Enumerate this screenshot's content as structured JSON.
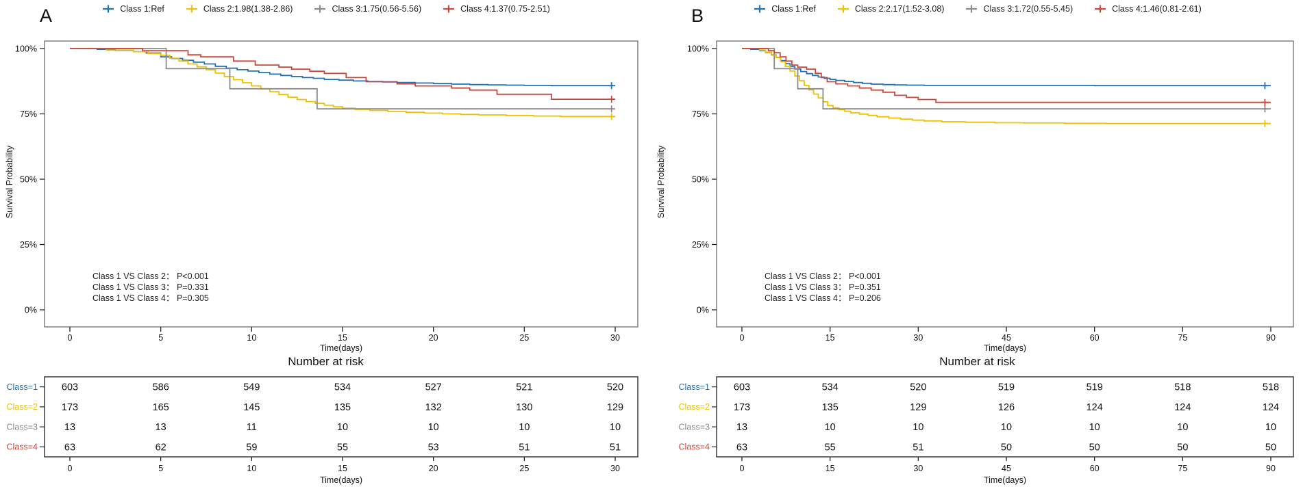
{
  "chart_data": [
    {
      "panel_label": "A",
      "type": "line",
      "subtype": "kaplan-meier-step",
      "xlabel": "Time(days)",
      "ylabel": "Survival Probability",
      "xlim": [
        0,
        31
      ],
      "xticks": [
        0,
        5,
        10,
        15,
        20,
        25,
        30
      ],
      "yticks": [
        100,
        75,
        50,
        25,
        0
      ],
      "ytick_labels": [
        "100%",
        "75%",
        "50%",
        "25%",
        "0%"
      ],
      "grid": "off",
      "legend_position": "top",
      "legend": [
        {
          "label": "Class 1:Ref",
          "color": "#2171B5"
        },
        {
          "label": "Class 2:1.98(1.38-2.86)",
          "color": "#EFC000"
        },
        {
          "label": "Class 3:1.75(0.56-5.56)",
          "color": "#8A8A8A"
        },
        {
          "label": "Class 4:1.37(0.75-2.51)",
          "color": "#CE463A"
        }
      ],
      "annotations": [
        "Class 1 VS Class 2： P<0.001",
        "Class 1 VS Class 3： P=0.331",
        "Class 1 VS Class 4： P=0.305"
      ],
      "series": [
        {
          "name": "Class 1",
          "color": "#2171B5",
          "censor": [
            29.8,
            85.8
          ],
          "steps": [
            [
              0,
              100
            ],
            [
              1.5,
              99.7
            ],
            [
              2.5,
              99.3
            ],
            [
              3.5,
              98.8
            ],
            [
              4.2,
              98.3
            ],
            [
              5,
              96.8
            ],
            [
              5.6,
              96.2
            ],
            [
              6.2,
              95.5
            ],
            [
              6.8,
              94.8
            ],
            [
              7.4,
              94.1
            ],
            [
              8,
              93.2
            ],
            [
              8.6,
              92.5
            ],
            [
              9.2,
              91.9
            ],
            [
              9.8,
              91.4
            ],
            [
              10.4,
              90.8
            ],
            [
              11,
              90.2
            ],
            [
              11.6,
              89.7
            ],
            [
              12.2,
              89.3
            ],
            [
              12.8,
              88.9
            ],
            [
              13.4,
              88.6
            ],
            [
              14,
              88.2
            ],
            [
              14.8,
              87.9
            ],
            [
              15.6,
              87.6
            ],
            [
              16.4,
              87.4
            ],
            [
              17.2,
              87.2
            ],
            [
              18,
              87.0
            ],
            [
              19,
              86.8
            ],
            [
              20,
              86.6
            ],
            [
              21,
              86.4
            ],
            [
              22,
              86.2
            ],
            [
              23,
              86.1
            ],
            [
              24,
              86.0
            ],
            [
              25,
              85.9
            ],
            [
              26.5,
              85.8
            ],
            [
              30,
              85.8
            ]
          ]
        },
        {
          "name": "Class 2",
          "color": "#EFC000",
          "censor": [
            29.8,
            74.0
          ],
          "steps": [
            [
              0,
              100
            ],
            [
              2,
              99.4
            ],
            [
              3.5,
              98.8
            ],
            [
              4.3,
              98.1
            ],
            [
              5,
              97.4
            ],
            [
              5.5,
              96.3
            ],
            [
              6,
              95.2
            ],
            [
              6.5,
              94.1
            ],
            [
              7,
              93.0
            ],
            [
              7.5,
              91.9
            ],
            [
              8,
              90.6
            ],
            [
              8.5,
              89.3
            ],
            [
              9,
              88.1
            ],
            [
              9.5,
              86.9
            ],
            [
              10,
              85.7
            ],
            [
              10.5,
              84.6
            ],
            [
              11,
              83.5
            ],
            [
              11.5,
              82.4
            ],
            [
              12,
              81.4
            ],
            [
              12.5,
              80.5
            ],
            [
              13,
              79.7
            ],
            [
              13.5,
              79.0
            ],
            [
              14,
              78.3
            ],
            [
              14.5,
              77.7
            ],
            [
              15,
              77.2
            ],
            [
              15.7,
              76.7
            ],
            [
              16.5,
              76.3
            ],
            [
              17.5,
              75.9
            ],
            [
              18.5,
              75.6
            ],
            [
              19.5,
              75.3
            ],
            [
              20.5,
              75.0
            ],
            [
              21.5,
              74.8
            ],
            [
              22.5,
              74.6
            ],
            [
              24,
              74.4
            ],
            [
              25.5,
              74.2
            ],
            [
              27,
              74.0
            ],
            [
              30,
              74.0
            ]
          ]
        },
        {
          "name": "Class 3",
          "color": "#8A8A8A",
          "censor": [
            29.8,
            76.9
          ],
          "steps": [
            [
              0,
              100
            ],
            [
              5.3,
              92.3
            ],
            [
              8.8,
              84.6
            ],
            [
              13.6,
              76.9
            ],
            [
              30,
              76.9
            ]
          ]
        },
        {
          "name": "Class 4",
          "color": "#CE463A",
          "censor": [
            29.8,
            80.6
          ],
          "steps": [
            [
              0,
              100
            ],
            [
              4,
              99.2
            ],
            [
              6.5,
              97.6
            ],
            [
              7.2,
              96.8
            ],
            [
              9,
              95.2
            ],
            [
              10.2,
              93.7
            ],
            [
              11.5,
              92.9
            ],
            [
              12.2,
              92.1
            ],
            [
              13.2,
              91.3
            ],
            [
              14,
              90.5
            ],
            [
              15.2,
              88.9
            ],
            [
              16.3,
              87.3
            ],
            [
              18,
              86.5
            ],
            [
              19,
              85.7
            ],
            [
              21,
              84.9
            ],
            [
              22,
              84.1
            ],
            [
              23.5,
              82.5
            ],
            [
              26.5,
              80.6
            ],
            [
              30,
              80.6
            ]
          ]
        }
      ],
      "risk_table": {
        "title": "Number at risk",
        "xlabel": "Time(days)",
        "times": [
          0,
          5,
          10,
          15,
          20,
          25,
          30
        ],
        "rows": [
          {
            "label": "Class=1",
            "color": "#2171B5",
            "values": [
              "603",
              "586",
              "549",
              "534",
              "527",
              "521",
              "520"
            ]
          },
          {
            "label": "Class=2",
            "color": "#EFC000",
            "values": [
              "173",
              "165",
              "145",
              "135",
              "132",
              "130",
              "129"
            ]
          },
          {
            "label": "Class=3",
            "color": "#8A8A8A",
            "values": [
              "13",
              "13",
              "11",
              "10",
              "10",
              "10",
              "10"
            ]
          },
          {
            "label": "Class=4",
            "color": "#CE463A",
            "values": [
              "63",
              "62",
              "59",
              "55",
              "53",
              "51",
              "51"
            ]
          }
        ]
      }
    },
    {
      "panel_label": "B",
      "type": "line",
      "subtype": "kaplan-meier-step",
      "xlabel": "Time(days)",
      "ylabel": "Survival Probability",
      "xlim": [
        0,
        93
      ],
      "xticks": [
        0,
        15,
        30,
        45,
        60,
        75,
        90
      ],
      "yticks": [
        100,
        75,
        50,
        25,
        0
      ],
      "ytick_labels": [
        "100%",
        "75%",
        "50%",
        "25%",
        "0%"
      ],
      "grid": "off",
      "legend_position": "top",
      "legend": [
        {
          "label": "Class 1:Ref",
          "color": "#2171B5"
        },
        {
          "label": "Class 2:2.17(1.52-3.08)",
          "color": "#EFC000"
        },
        {
          "label": "Class 3:1.72(0.55-5.45)",
          "color": "#8A8A8A"
        },
        {
          "label": "Class 4:1.46(0.81-2.61)",
          "color": "#CE463A"
        }
      ],
      "annotations": [
        "Class 1 VS Class 2： P<0.001",
        "Class 1 VS Class 3： P=0.351",
        "Class 1 VS Class 4： P=0.206"
      ],
      "series": [
        {
          "name": "Class 1",
          "color": "#2171B5",
          "censor": [
            89,
            85.8
          ],
          "steps": [
            [
              0,
              100
            ],
            [
              1.5,
              99.7
            ],
            [
              3,
              99.2
            ],
            [
              4,
              98.5
            ],
            [
              5,
              97.6
            ],
            [
              5.8,
              96.6
            ],
            [
              6.6,
              95.4
            ],
            [
              7.4,
              94.2
            ],
            [
              8.2,
              93.1
            ],
            [
              9,
              92.2
            ],
            [
              10,
              91.2
            ],
            [
              11,
              90.4
            ],
            [
              12,
              89.7
            ],
            [
              13,
              89.1
            ],
            [
              14,
              88.6
            ],
            [
              15,
              88.2
            ],
            [
              16,
              87.8
            ],
            [
              17.5,
              87.4
            ],
            [
              19,
              87.0
            ],
            [
              20.5,
              86.7
            ],
            [
              22,
              86.4
            ],
            [
              24,
              86.2
            ],
            [
              26,
              86.1
            ],
            [
              28,
              86.0
            ],
            [
              31,
              85.9
            ],
            [
              60,
              85.8
            ],
            [
              90,
              85.8
            ]
          ]
        },
        {
          "name": "Class 2",
          "color": "#EFC000",
          "censor": [
            89,
            71.3
          ],
          "steps": [
            [
              0,
              100
            ],
            [
              3,
              99.4
            ],
            [
              4,
              98.6
            ],
            [
              5,
              97.7
            ],
            [
              5.8,
              96.5
            ],
            [
              6.6,
              95.0
            ],
            [
              7.4,
              93.2
            ],
            [
              8.2,
              91.4
            ],
            [
              9,
              89.5
            ],
            [
              9.8,
              87.7
            ],
            [
              10.6,
              85.9
            ],
            [
              11.4,
              84.2
            ],
            [
              12.2,
              82.6
            ],
            [
              13,
              81.1
            ],
            [
              13.8,
              79.6
            ],
            [
              14.6,
              78.2
            ],
            [
              15.5,
              77.3
            ],
            [
              16.5,
              76.6
            ],
            [
              17.5,
              76.0
            ],
            [
              18.5,
              75.4
            ],
            [
              20,
              74.9
            ],
            [
              21.5,
              74.4
            ],
            [
              23,
              73.9
            ],
            [
              25,
              73.4
            ],
            [
              27,
              73.0
            ],
            [
              29,
              72.6
            ],
            [
              31,
              72.3
            ],
            [
              34,
              72.0
            ],
            [
              38,
              71.8
            ],
            [
              43,
              71.6
            ],
            [
              48,
              71.5
            ],
            [
              55,
              71.4
            ],
            [
              62,
              71.3
            ],
            [
              90,
              71.3
            ]
          ]
        },
        {
          "name": "Class 3",
          "color": "#8A8A8A",
          "censor": [
            89,
            76.9
          ],
          "steps": [
            [
              0,
              100
            ],
            [
              5.5,
              92.3
            ],
            [
              9.5,
              84.6
            ],
            [
              13.8,
              76.9
            ],
            [
              90,
              76.9
            ]
          ]
        },
        {
          "name": "Class 4",
          "color": "#CE463A",
          "censor": [
            89,
            79.4
          ],
          "steps": [
            [
              0,
              100
            ],
            [
              4.5,
              99.2
            ],
            [
              5.5,
              98.4
            ],
            [
              6.5,
              96.8
            ],
            [
              7.5,
              95.2
            ],
            [
              8.5,
              93.7
            ],
            [
              9.5,
              92.9
            ],
            [
              11,
              92.1
            ],
            [
              12.5,
              90.5
            ],
            [
              13.5,
              88.9
            ],
            [
              14.5,
              87.3
            ],
            [
              16,
              86.5
            ],
            [
              18,
              85.7
            ],
            [
              20,
              84.9
            ],
            [
              22,
              84.1
            ],
            [
              24,
              83.3
            ],
            [
              26,
              82.1
            ],
            [
              28,
              81.3
            ],
            [
              30,
              80.5
            ],
            [
              33,
              79.4
            ],
            [
              90,
              79.4
            ]
          ]
        }
      ],
      "risk_table": {
        "title": "Number at risk",
        "xlabel": "Time(days)",
        "times": [
          0,
          15,
          30,
          45,
          60,
          75,
          90
        ],
        "rows": [
          {
            "label": "Class=1",
            "color": "#2171B5",
            "values": [
              "603",
              "534",
              "520",
              "519",
              "519",
              "518",
              "518"
            ]
          },
          {
            "label": "Class=2",
            "color": "#EFC000",
            "values": [
              "173",
              "135",
              "129",
              "126",
              "124",
              "124",
              "124"
            ]
          },
          {
            "label": "Class=3",
            "color": "#8A8A8A",
            "values": [
              "13",
              "10",
              "10",
              "10",
              "10",
              "10",
              "10"
            ]
          },
          {
            "label": "Class=4",
            "color": "#CE463A",
            "values": [
              "63",
              "55",
              "51",
              "50",
              "50",
              "50",
              "50"
            ]
          }
        ]
      }
    }
  ]
}
